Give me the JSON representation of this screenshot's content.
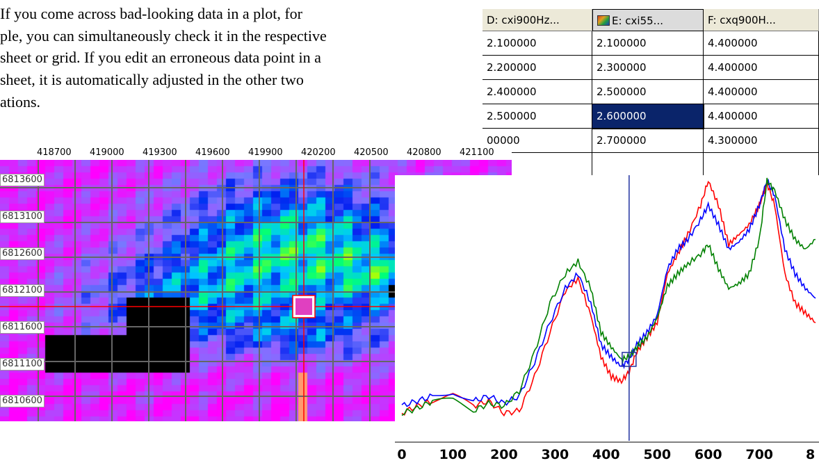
{
  "intro": {
    "lines": [
      "If you come across bad-looking data in a plot, for",
      "ple, you can simultaneously check it in the respective",
      "sheet or grid. If you edit an erroneous data point in a",
      "sheet, it is automatically adjusted in the other two",
      "ations."
    ]
  },
  "spreadsheet": {
    "columns": [
      {
        "label": "D: cxi900Hz...",
        "icon": ""
      },
      {
        "label": "E: cxi55...",
        "icon": "grid-color-icon"
      },
      {
        "label": "F: cxq900H...",
        "icon": ""
      }
    ],
    "rows": [
      [
        "2.100000",
        "2.100000",
        "4.400000"
      ],
      [
        "2.200000",
        "2.300000",
        "4.400000"
      ],
      [
        "2.400000",
        "2.500000",
        "4.400000"
      ],
      [
        "2.500000",
        "2.600000",
        "4.400000"
      ],
      [
        "00000",
        "2.700000",
        "4.300000"
      ],
      [
        "",
        "",
        ""
      ]
    ],
    "active_cell": {
      "row": 3,
      "col": 1
    },
    "selected_color": "#0a246a"
  },
  "grid": {
    "x_ticks": [
      "418700",
      "419000",
      "419300",
      "419600",
      "419900",
      "420200",
      "420500",
      "420800",
      "421100"
    ],
    "y_ticks": [
      "6813600",
      "6813100",
      "6812600",
      "6812100",
      "6811600",
      "6811100",
      "6810600"
    ],
    "crosshair_color": "#ff0000"
  },
  "chart_data": {
    "type": "line",
    "title": "",
    "xlabel": "",
    "ylabel": "",
    "x_ticks": [
      "0",
      "100",
      "200",
      "300",
      "400",
      "500",
      "600",
      "700",
      "8"
    ],
    "xlim": [
      0,
      810
    ],
    "cursor_x": 445,
    "series": [
      {
        "color": "#ff0000",
        "x": [
          0,
          30,
          60,
          100,
          140,
          170,
          200,
          230,
          260,
          290,
          320,
          345,
          370,
          390,
          410,
          430,
          445,
          460,
          480,
          500,
          520,
          540,
          560,
          585,
          600,
          620,
          640,
          660,
          680,
          700,
          715,
          730,
          750,
          770,
          790,
          810
        ],
        "y": [
          0.05,
          0.08,
          0.1,
          0.12,
          0.08,
          0.1,
          0.05,
          0.06,
          0.2,
          0.38,
          0.55,
          0.6,
          0.45,
          0.28,
          0.2,
          0.18,
          0.22,
          0.3,
          0.36,
          0.42,
          0.62,
          0.7,
          0.78,
          0.9,
          1.0,
          0.9,
          0.74,
          0.78,
          0.82,
          0.9,
          0.99,
          0.9,
          0.62,
          0.5,
          0.46,
          0.42
        ]
      },
      {
        "color": "#0000ff",
        "x": [
          0,
          30,
          60,
          100,
          140,
          170,
          200,
          230,
          260,
          290,
          320,
          345,
          370,
          390,
          410,
          430,
          445,
          460,
          480,
          500,
          520,
          540,
          560,
          585,
          600,
          620,
          640,
          660,
          680,
          700,
          715,
          730,
          750,
          770,
          790,
          810
        ],
        "y": [
          0.08,
          0.1,
          0.12,
          0.14,
          0.1,
          0.12,
          0.09,
          0.12,
          0.26,
          0.42,
          0.56,
          0.62,
          0.5,
          0.33,
          0.28,
          0.24,
          0.27,
          0.33,
          0.38,
          0.45,
          0.64,
          0.72,
          0.76,
          0.84,
          0.9,
          0.82,
          0.72,
          0.75,
          0.8,
          0.9,
          1.0,
          0.94,
          0.72,
          0.62,
          0.56,
          0.52
        ]
      },
      {
        "color": "#008000",
        "x": [
          0,
          30,
          60,
          100,
          140,
          170,
          200,
          230,
          260,
          290,
          320,
          345,
          370,
          390,
          410,
          430,
          445,
          460,
          480,
          500,
          520,
          540,
          560,
          585,
          600,
          620,
          640,
          660,
          680,
          700,
          715,
          730,
          750,
          770,
          790,
          810
        ],
        "y": [
          0.05,
          0.07,
          0.1,
          0.1,
          0.06,
          0.09,
          0.08,
          0.14,
          0.3,
          0.5,
          0.62,
          0.67,
          0.56,
          0.38,
          0.32,
          0.27,
          0.28,
          0.32,
          0.36,
          0.44,
          0.57,
          0.62,
          0.66,
          0.7,
          0.74,
          0.64,
          0.56,
          0.58,
          0.62,
          0.76,
          1.0,
          0.96,
          0.84,
          0.76,
          0.72,
          0.76
        ]
      }
    ]
  }
}
